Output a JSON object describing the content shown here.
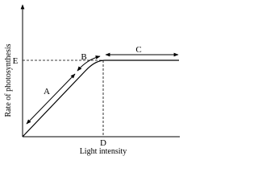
{
  "axes": {
    "y_label": "Rate of photosynthesis",
    "x_label": "Light intensity",
    "y_marker": "E",
    "x_marker": "D"
  },
  "regions": {
    "a": "A",
    "b": "B",
    "c": "C"
  }
}
